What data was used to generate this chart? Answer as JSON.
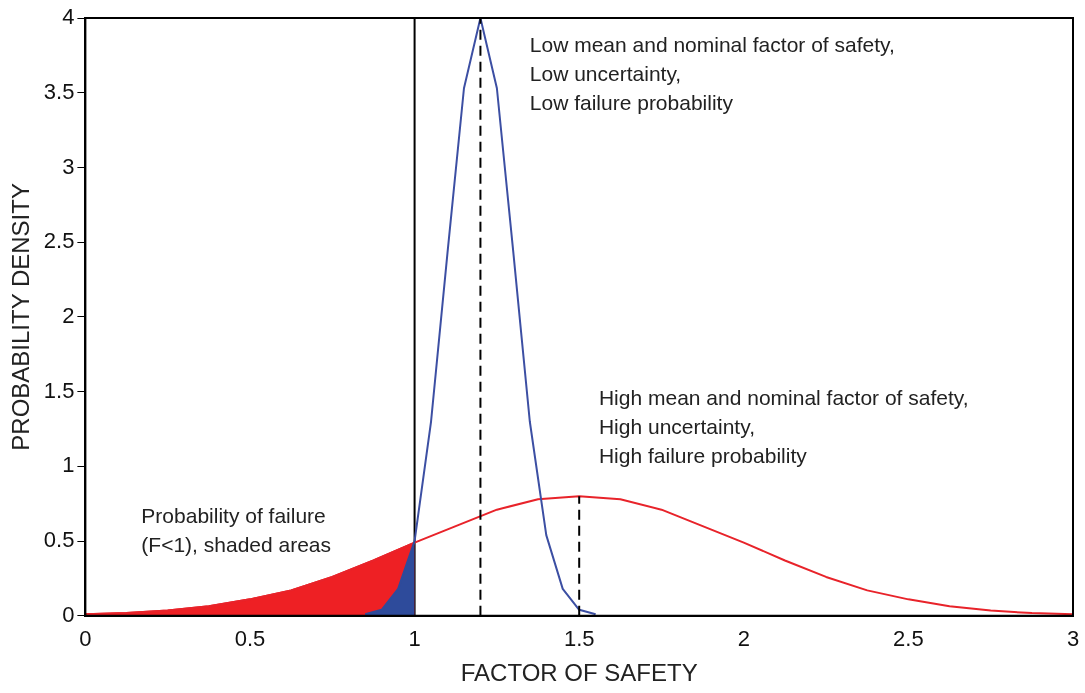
{
  "chart_data": {
    "type": "line",
    "xlabel": "FACTOR OF SAFETY",
    "ylabel": "PROBABILITY DENSITY",
    "xlim": [
      0,
      3
    ],
    "xticks": [
      0,
      0.5,
      1,
      1.5,
      2,
      2.5,
      3
    ],
    "ylim": [
      0,
      4
    ],
    "yticks": [
      0,
      0.5,
      1,
      1.5,
      2,
      2.5,
      3,
      3.5,
      4
    ],
    "grid": false,
    "legend": false,
    "marker": "none",
    "series": [
      {
        "type": "area",
        "color": "#ee2024",
        "x": [
          0,
          0.125,
          0.25,
          0.375,
          0.5,
          0.625,
          0.75,
          0.875,
          1
        ],
        "values": [
          0.01,
          0.018,
          0.035,
          0.064,
          0.11,
          0.17,
          0.26,
          0.37,
          0.49
        ]
      },
      {
        "type": "line",
        "color": "#e8232a",
        "line_style": "solid",
        "x": [
          0,
          0.125,
          0.25,
          0.375,
          0.5,
          0.625,
          0.75,
          0.875,
          1,
          1.125,
          1.25,
          1.375,
          1.5,
          1.625,
          1.75,
          1.875,
          2,
          2.125,
          2.25,
          2.375,
          2.5,
          2.625,
          2.75,
          2.875,
          3
        ],
        "values": [
          0.01,
          0.018,
          0.035,
          0.064,
          0.11,
          0.17,
          0.26,
          0.37,
          0.49,
          0.6,
          0.71,
          0.78,
          0.8,
          0.78,
          0.71,
          0.6,
          0.49,
          0.37,
          0.26,
          0.17,
          0.11,
          0.064,
          0.035,
          0.018,
          0.01
        ]
      },
      {
        "type": "line",
        "color": "#3c4fa3",
        "line_style": "solid",
        "x": [
          1,
          1.05,
          1.1,
          1.15,
          1.2,
          1.25,
          1.3,
          1.35,
          1.4,
          1.45,
          1.5,
          1.55
        ],
        "values": [
          0.5,
          1.3,
          2.43,
          3.53,
          4,
          3.53,
          2.43,
          1.3,
          0.54,
          0.18,
          0.04,
          0.01
        ]
      },
      {
        "type": "area",
        "color": "#2e4b9b",
        "x": [
          0.85,
          0.9,
          0.95,
          1
        ],
        "values": [
          0.01,
          0.04,
          0.18,
          0.5
        ]
      },
      {
        "type": "line",
        "color": "#000000",
        "line_style": "dashed",
        "x": [
          1.2,
          1.2
        ],
        "values": [
          0,
          4
        ]
      },
      {
        "type": "line",
        "color": "#000000",
        "line_style": "dashed",
        "x": [
          1.5,
          1.5
        ],
        "values": [
          0,
          0.8
        ]
      }
    ],
    "ref_lines": [
      {
        "axis": "x",
        "value": 1,
        "color": "#000000",
        "line_style": "solid"
      }
    ],
    "annotations": [
      "Low mean and nominal factor of safety,\nLow uncertainty,\nLow failure probability",
      "High mean and nominal factor of safety,\nHigh uncertainty,\nHigh failure probability",
      "Probability of failure\n(F<1), shaded areas"
    ]
  }
}
